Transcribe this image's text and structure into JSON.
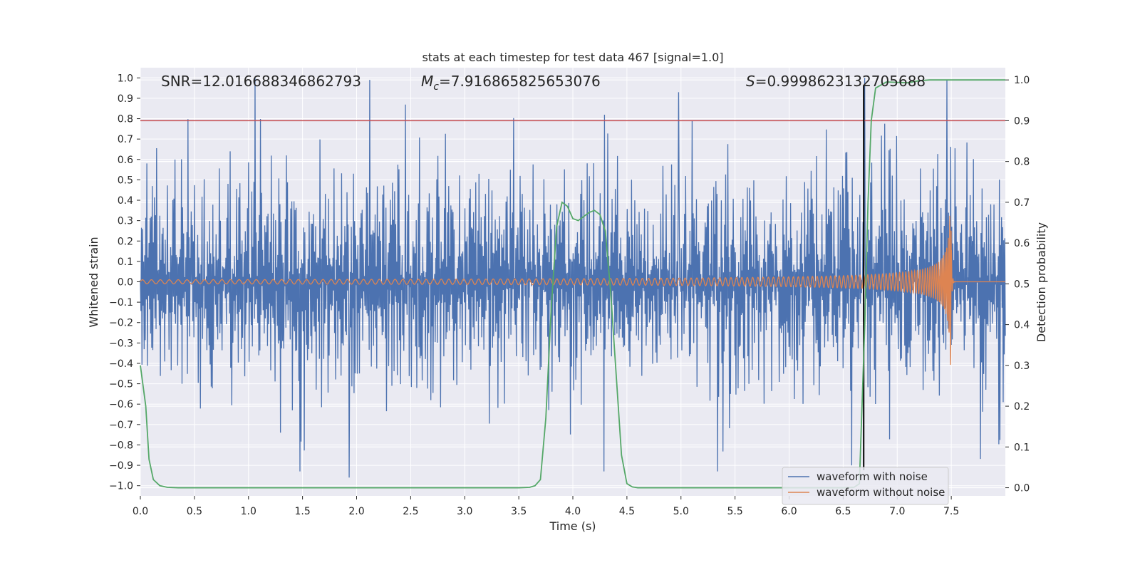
{
  "chart_data": {
    "type": "line",
    "title": "stats at each timestep for test data 467 [signal=1.0]",
    "xlabel": "Time (s)",
    "ylabel": "Whitened strain",
    "ylabel_right": "Detection probability",
    "xlim": [
      0.0,
      8.0
    ],
    "ylim": [
      -1.05,
      1.05
    ],
    "ylim_right": [
      -0.02,
      1.03
    ],
    "xticks": [
      0.0,
      0.5,
      1.0,
      1.5,
      2.0,
      2.5,
      3.0,
      3.5,
      4.0,
      4.5,
      5.0,
      5.5,
      6.0,
      6.5,
      7.0,
      7.5
    ],
    "xtick_labels": [
      "0.0",
      "0.5",
      "1.0",
      "1.5",
      "2.0",
      "2.5",
      "3.0",
      "3.5",
      "4.0",
      "4.5",
      "5.0",
      "5.5",
      "6.0",
      "6.5",
      "7.0",
      "7.5"
    ],
    "yticks": [
      1.0,
      0.9,
      0.8,
      0.7,
      0.6,
      0.5,
      0.4,
      0.3,
      0.2,
      0.1,
      0.0,
      -0.1,
      -0.2,
      -0.3,
      -0.4,
      -0.5,
      -0.6,
      -0.7,
      -0.8,
      -0.9,
      -1.0
    ],
    "ytick_labels": [
      "1.0",
      "0.9",
      "0.8",
      "0.7",
      "0.6",
      "0.5",
      "0.4",
      "0.3",
      "0.2",
      "0.1",
      "0.0",
      "−0.1",
      "−0.2",
      "−0.3",
      "−0.4",
      "−0.5",
      "−0.6",
      "−0.7",
      "−0.8",
      "−0.9",
      "−1.0"
    ],
    "yticks_right": [
      1.0,
      0.9,
      0.8,
      0.7,
      0.6,
      0.5,
      0.4,
      0.3,
      0.2,
      0.1,
      0.0
    ],
    "ytick_labels_right": [
      "1.0",
      "0.9",
      "0.8",
      "0.7",
      "0.6",
      "0.5",
      "0.4",
      "0.3",
      "0.2",
      "0.1",
      "0.0"
    ],
    "grid": true,
    "annotations": {
      "snr": "SNR=12.016688346862793",
      "mc_symbol": "M",
      "mc_sub": "c",
      "mc_value": "=7.916865825653076",
      "s_symbol": "S",
      "s_value": "=0.9998623132705688"
    },
    "threshold_line": {
      "axis": "right",
      "y": 0.9,
      "color": "#c44e52"
    },
    "event_marker": {
      "x": 6.69,
      "color": "#000000"
    },
    "series": [
      {
        "name": "waveform with noise",
        "color": "#4c72b0",
        "kind": "noise",
        "sample_count": 1600,
        "amplitude_std": 0.26,
        "peaks": [
          {
            "x": 1.06,
            "y": 1.0
          },
          {
            "x": 2.12,
            "y": 0.99
          },
          {
            "x": 4.98,
            "y": 0.93
          },
          {
            "x": 7.46,
            "y": 0.99
          },
          {
            "x": 1.93,
            "y": -0.96
          },
          {
            "x": 6.58,
            "y": -0.9
          },
          {
            "x": 6.7,
            "y": 1.0
          }
        ]
      },
      {
        "name": "waveform without noise",
        "color": "#dd8452",
        "kind": "chirp",
        "t_merger": 7.5,
        "amp_start": 0.01,
        "amp_peak": 0.41,
        "cycles_start_hz": 12,
        "cycles_end_hz": 70
      },
      {
        "name": "detection probability",
        "color": "#55a868",
        "axis": "right",
        "x": [
          0.0,
          0.05,
          0.08,
          0.12,
          0.18,
          0.25,
          0.35,
          0.5,
          1.0,
          2.0,
          3.0,
          3.5,
          3.6,
          3.65,
          3.7,
          3.75,
          3.8,
          3.85,
          3.9,
          3.95,
          4.0,
          4.05,
          4.1,
          4.15,
          4.2,
          4.25,
          4.3,
          4.35,
          4.4,
          4.45,
          4.5,
          4.55,
          4.6,
          5.0,
          6.0,
          6.5,
          6.6,
          6.65,
          6.7,
          6.73,
          6.76,
          6.8,
          6.9,
          7.0,
          7.1,
          7.2,
          7.3,
          7.5,
          8.0
        ],
        "values": [
          0.3,
          0.2,
          0.07,
          0.02,
          0.005,
          0.001,
          0.0,
          0.0,
          0.0,
          0.0,
          0.0,
          0.0,
          0.001,
          0.005,
          0.02,
          0.17,
          0.44,
          0.64,
          0.7,
          0.69,
          0.66,
          0.655,
          0.665,
          0.675,
          0.68,
          0.67,
          0.63,
          0.48,
          0.28,
          0.08,
          0.01,
          0.002,
          0.0,
          0.0,
          0.0,
          0.0,
          0.001,
          0.01,
          0.4,
          0.7,
          0.9,
          0.98,
          0.995,
          0.994,
          0.993,
          0.998,
          1.0,
          1.0,
          1.0
        ]
      }
    ],
    "legend": {
      "placement": "lower-right",
      "entries": [
        "waveform with noise",
        "waveform without noise"
      ]
    }
  }
}
